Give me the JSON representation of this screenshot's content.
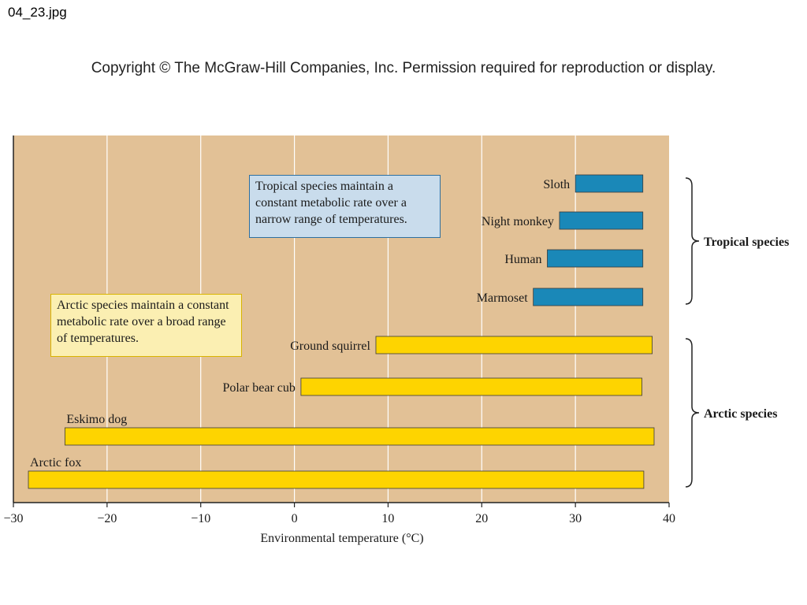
{
  "file_label": "04_23.jpg",
  "copyright": "Copyright © The McGraw-Hill Companies, Inc. Permission required for reproduction or display.",
  "chart_data": {
    "type": "bar",
    "orientation": "horizontal",
    "title": "",
    "xlabel": "Environmental temperature (°C)",
    "ylabel": "",
    "xlim": [
      -30,
      40
    ],
    "xticks": [
      -30,
      -20,
      -10,
      0,
      10,
      20,
      30,
      40
    ],
    "xtick_labels": [
      "−30",
      "−20",
      "−10",
      "0",
      "10",
      "20",
      "30",
      "40"
    ],
    "grid": "vertical",
    "colors": {
      "background": "#e2c196",
      "tropical": "#1a88b8",
      "arctic": "#fed400",
      "grid": "#ffffff"
    },
    "groups": [
      {
        "name": "Tropical species",
        "color": "#1a88b8",
        "species": [
          {
            "name": "Sloth",
            "range": [
              30,
              37.2
            ]
          },
          {
            "name": "Night monkey",
            "range": [
              28.3,
              37.2
            ]
          },
          {
            "name": "Human",
            "range": [
              27,
              37.2
            ]
          },
          {
            "name": "Marmoset",
            "range": [
              25.5,
              37.2
            ]
          }
        ]
      },
      {
        "name": "Arctic species",
        "color": "#fed400",
        "species": [
          {
            "name": "Ground squirrel",
            "range": [
              8.7,
              38.2
            ]
          },
          {
            "name": "Polar bear cub",
            "range": [
              0.7,
              37.1
            ]
          },
          {
            "name": "Eskimo dog",
            "range": [
              -24.5,
              38.4
            ]
          },
          {
            "name": "Arctic fox",
            "range": [
              -28.4,
              37.3
            ]
          }
        ]
      }
    ],
    "annotations": [
      "Tropical species maintain a constant metabolic rate over a narrow range of temperatures.",
      "Arctic species maintain a constant metabolic rate over a broad range of temperatures."
    ]
  }
}
